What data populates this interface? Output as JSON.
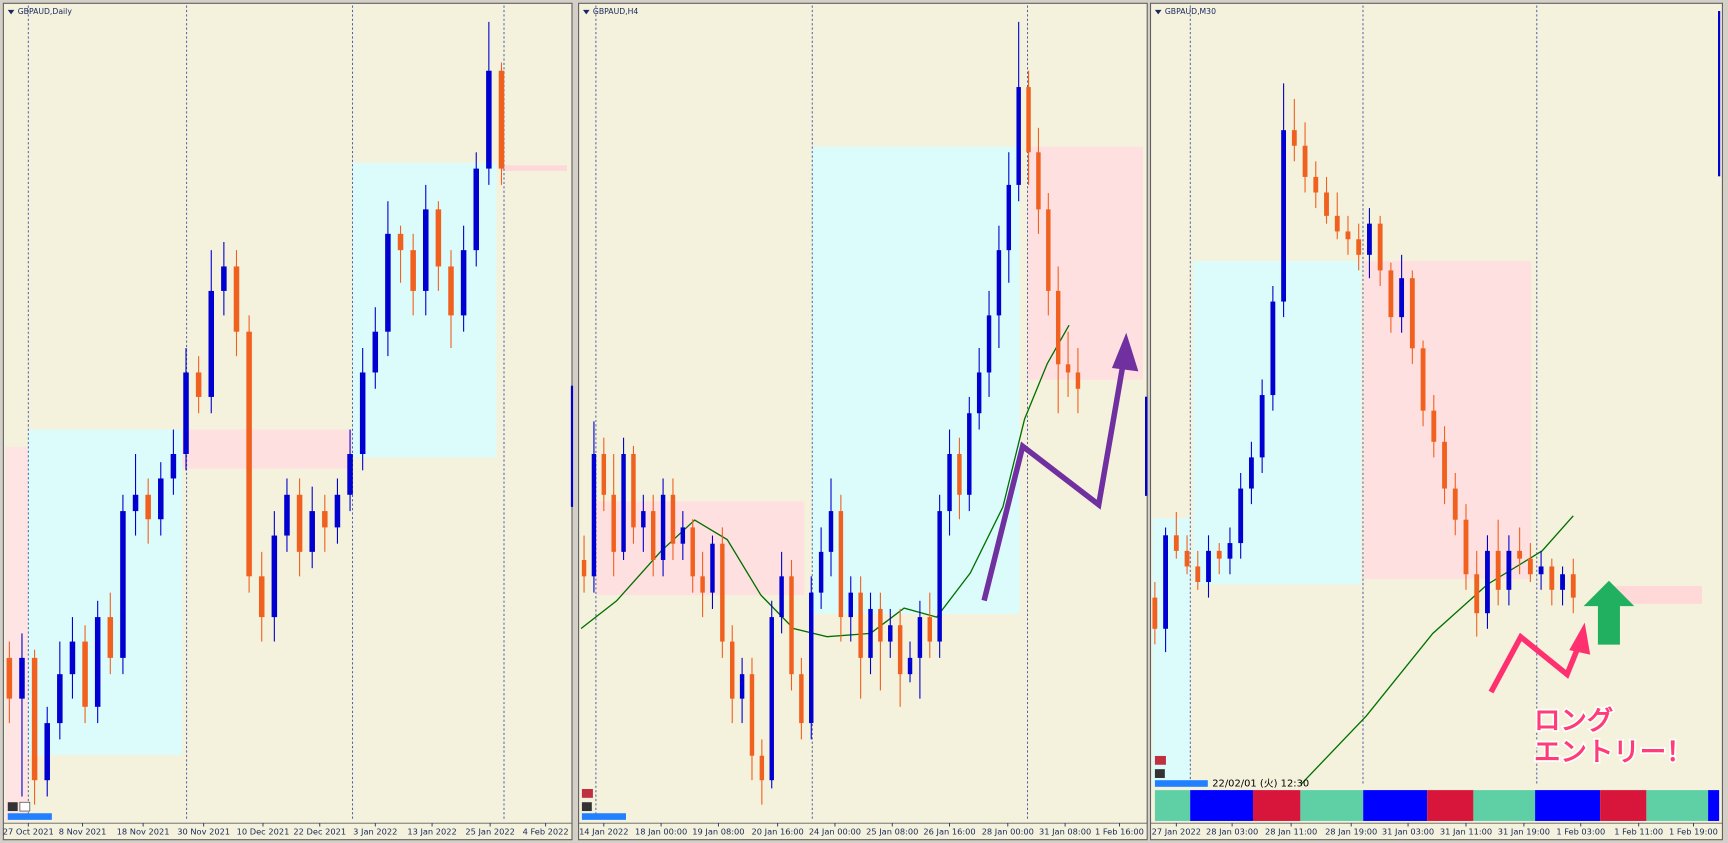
{
  "chart_data": [
    {
      "type": "candlestick",
      "title": "GBPAUD,Daily",
      "xlim": [
        -0.3,
        44.5
      ],
      "ylim": [
        0,
        100
      ],
      "xticks": [
        {
          "value": 1.5,
          "label": "27 Oct 2021"
        },
        {
          "value": 5.8,
          "label": "8 Nov 2021"
        },
        {
          "value": 10.6,
          "label": "18 Nov 2021"
        },
        {
          "value": 15.4,
          "label": "30 Nov 2021"
        },
        {
          "value": 20.1,
          "label": "10 Dec 2021"
        },
        {
          "value": 24.6,
          "label": "22 Dec 2021"
        },
        {
          "value": 29,
          "label": "3 Jan 2022"
        },
        {
          "value": 33.5,
          "label": "13 Jan 2022"
        },
        {
          "value": 38.1,
          "label": "25 Jan 2022"
        },
        {
          "value": 42.5,
          "label": "4 Feb 2022"
        }
      ],
      "separators": [
        1.5,
        14.05,
        27.2,
        39.2
      ],
      "up_color": "#0000d0",
      "down_color": "#f0601e",
      "open": [
        20,
        15,
        20,
        5,
        12,
        18,
        22,
        14,
        25,
        20,
        38,
        40,
        37,
        42,
        45,
        55,
        52,
        65,
        68,
        60,
        30,
        25,
        35,
        40,
        33,
        38,
        36,
        40,
        45,
        55,
        60,
        72,
        70,
        65,
        75,
        68,
        62,
        70,
        80,
        92
      ],
      "high": [
        22,
        23,
        21,
        14,
        22,
        25,
        24,
        27,
        28,
        40,
        45,
        42,
        44,
        48,
        58,
        57,
        70,
        71,
        70,
        62,
        33,
        38,
        42,
        42,
        41,
        40,
        42,
        48,
        58,
        63,
        76,
        73,
        72,
        78,
        76,
        70,
        73,
        82,
        98,
        93
      ],
      "low": [
        12,
        3,
        2,
        3,
        10,
        15,
        12,
        12,
        18,
        18,
        35,
        34,
        35,
        40,
        43,
        50,
        50,
        62,
        57,
        28,
        22,
        22,
        33,
        30,
        31,
        33,
        34,
        38,
        43,
        53,
        57,
        66,
        62,
        62,
        65,
        58,
        60,
        68,
        78,
        78
      ],
      "close": [
        15,
        20,
        5,
        12,
        18,
        22,
        14,
        25,
        20,
        38,
        40,
        37,
        42,
        45,
        55,
        52,
        65,
        68,
        60,
        30,
        25,
        35,
        40,
        33,
        38,
        36,
        40,
        45,
        55,
        60,
        72,
        70,
        65,
        75,
        68,
        62,
        70,
        80,
        92,
        80
      ],
      "zones": [
        {
          "from": -0.3,
          "to": 1.48,
          "low": 0,
          "high": 45.9,
          "color": "#ffe4e4"
        },
        {
          "from": 1.48,
          "to": 13.7,
          "low": 8.1,
          "high": 48,
          "color": "#dcfcfc"
        },
        {
          "from": 13.7,
          "to": 27.2,
          "low": 43.2,
          "high": 48,
          "color": "#ffe0e0"
        },
        {
          "from": 27.2,
          "to": 38.6,
          "low": 44.6,
          "high": 80.7,
          "color": "#dcfcfc"
        },
        {
          "from": 39,
          "to": 44.2,
          "low": 79.7,
          "high": 80.4,
          "color": "#ffd8d8"
        }
      ]
    },
    {
      "type": "candlestick",
      "title": "GBPAUD,H4",
      "xlim": [
        -0.33,
        56.9
      ],
      "ylim": [
        0,
        100
      ],
      "xticks": [
        {
          "value": 2,
          "label": "14 Jan 2022"
        },
        {
          "value": 7.8,
          "label": "18 Jan 00:00"
        },
        {
          "value": 13.6,
          "label": "19 Jan 08:00"
        },
        {
          "value": 19.6,
          "label": "20 Jan 16:00"
        },
        {
          "value": 25.4,
          "label": "24 Jan 00:00"
        },
        {
          "value": 31.2,
          "label": "25 Jan 08:00"
        },
        {
          "value": 37,
          "label": "26 Jan 16:00"
        },
        {
          "value": 42.9,
          "label": "28 Jan 00:00"
        },
        {
          "value": 48.7,
          "label": "31 Jan 08:00"
        },
        {
          "value": 54.2,
          "label": "1 Feb 16:00"
        }
      ],
      "separators": [
        1.2,
        23.1,
        44.9
      ],
      "up_color": "#0000d0",
      "down_color": "#f0601e",
      "open": [
        32,
        30,
        45,
        40,
        33,
        45,
        36,
        38,
        32,
        40,
        34,
        36,
        30,
        28,
        34,
        22,
        15,
        18,
        8,
        5,
        25,
        30,
        18,
        12,
        28,
        33,
        38,
        25,
        28,
        20,
        26,
        22,
        24,
        18,
        20,
        25,
        22,
        38,
        45,
        40,
        50,
        55,
        62,
        70,
        78,
        90,
        82,
        75,
        65,
        56,
        55
      ],
      "high": [
        35,
        49,
        47,
        45,
        47,
        46,
        40,
        40,
        42,
        42,
        38,
        37,
        33,
        35,
        36,
        24,
        20,
        20,
        10,
        27,
        33,
        32,
        20,
        30,
        36,
        42,
        40,
        30,
        30,
        28,
        28,
        26,
        26,
        22,
        27,
        28,
        40,
        48,
        47,
        52,
        58,
        65,
        73,
        82,
        98,
        92,
        85,
        77,
        68,
        60,
        58
      ],
      "low": [
        28,
        28,
        38,
        30,
        32,
        34,
        33,
        30,
        30,
        32,
        32,
        28,
        25,
        26,
        20,
        12,
        12,
        5,
        2,
        4,
        23,
        16,
        10,
        10,
        26,
        30,
        22,
        22,
        15,
        18,
        16,
        20,
        14,
        17,
        15,
        20,
        20,
        35,
        37,
        38,
        48,
        52,
        58,
        66,
        76,
        78,
        72,
        62,
        50,
        52,
        50
      ],
      "close": [
        30,
        45,
        40,
        33,
        45,
        36,
        38,
        32,
        40,
        34,
        36,
        30,
        28,
        34,
        22,
        15,
        18,
        8,
        5,
        25,
        30,
        18,
        12,
        28,
        33,
        38,
        25,
        28,
        20,
        26,
        22,
        24,
        18,
        20,
        25,
        22,
        38,
        45,
        40,
        50,
        55,
        62,
        70,
        78,
        90,
        82,
        75,
        65,
        56,
        55,
        53
      ],
      "zones": [
        {
          "from": 1.2,
          "to": 22.3,
          "low": 27.7,
          "high": 39.2,
          "color": "#ffe0e0"
        },
        {
          "from": 23.1,
          "to": 44.1,
          "low": 25.4,
          "high": 82.7,
          "color": "#dcfcfc"
        },
        {
          "from": 44.9,
          "to": 56.6,
          "low": 54.1,
          "high": 82.7,
          "color": "#ffe0e0"
        }
      ],
      "ma": {
        "color": "#007000",
        "x": [
          -0.3,
          3.3,
          7.8,
          11.2,
          14.5,
          17.9,
          21.2,
          24.6,
          29,
          32.4,
          35.7,
          39.1,
          42.4,
          44.6,
          46.9,
          49.1
        ],
        "values": [
          23.6,
          27,
          33.1,
          36.9,
          34.5,
          27.7,
          23.6,
          22.6,
          23,
          26.1,
          25,
          30.4,
          38.5,
          49.3,
          56.1,
          60.8
        ]
      }
    },
    {
      "type": "candlestick",
      "title": "GBPAUD,M30",
      "xlim": [
        -0.2,
        52.8
      ],
      "ylim": [
        0,
        100
      ],
      "xticks": [
        {
          "value": 2,
          "label": "27 Jan 2022"
        },
        {
          "value": 7.2,
          "label": "28 Jan 03:00"
        },
        {
          "value": 12.7,
          "label": "28 Jan 11:00"
        },
        {
          "value": 18.3,
          "label": "28 Jan 19:00"
        },
        {
          "value": 23.6,
          "label": "31 Jan 03:00"
        },
        {
          "value": 29,
          "label": "31 Jan 11:00"
        },
        {
          "value": 34.4,
          "label": "31 Jan 19:00"
        },
        {
          "value": 39.7,
          "label": "1 Feb 03:00"
        },
        {
          "value": 45.1,
          "label": "1 Feb 11:00"
        },
        {
          "value": 50.2,
          "label": "1 Feb 19:00"
        }
      ],
      "separators": [
        3.3,
        19.4,
        35.6
      ],
      "up_color": "#0000d0",
      "down_color": "#f0601e",
      "open": [
        24,
        20,
        32,
        30,
        28,
        26,
        30,
        29,
        31,
        38,
        42,
        50,
        62,
        84,
        82,
        78,
        76,
        73,
        71,
        70,
        68,
        72,
        66,
        60,
        65,
        56,
        48,
        44,
        38,
        34,
        27,
        22,
        30,
        25,
        30,
        29,
        27,
        28,
        25,
        27
      ],
      "high": [
        26,
        33,
        35,
        32,
        30,
        32,
        31,
        33,
        40,
        44,
        52,
        64,
        90,
        88,
        85,
        80,
        78,
        76,
        73,
        72,
        74,
        73,
        67,
        68,
        66,
        57,
        50,
        46,
        40,
        36,
        30,
        32,
        34,
        32,
        33,
        31,
        30,
        29,
        28,
        29
      ],
      "low": [
        18,
        17,
        29,
        27,
        25,
        24,
        27,
        27,
        29,
        36,
        40,
        48,
        60,
        80,
        76,
        74,
        72,
        70,
        68,
        66,
        65,
        64,
        58,
        58,
        54,
        46,
        42,
        36,
        32,
        25,
        19,
        20,
        23,
        23,
        27,
        26,
        25,
        23,
        23,
        22
      ],
      "close": [
        20,
        32,
        30,
        28,
        26,
        30,
        29,
        31,
        38,
        42,
        50,
        62,
        84,
        82,
        78,
        76,
        73,
        71,
        70,
        68,
        72,
        66,
        60,
        65,
        56,
        48,
        44,
        38,
        34,
        27,
        22,
        30,
        25,
        30,
        29,
        27,
        28,
        25,
        27,
        24
      ],
      "zones": [
        {
          "from": -0.2,
          "to": 3.3,
          "low": 0,
          "high": 34.2,
          "color": "#dcfcfc"
        },
        {
          "from": 3.6,
          "to": 19.2,
          "low": 25.7,
          "high": 67.2,
          "color": "#dcfcfc"
        },
        {
          "from": 19.5,
          "to": 35.1,
          "low": 26.4,
          "high": 67.2,
          "color": "#ffe0e0"
        },
        {
          "from": 42.8,
          "to": 51,
          "low": 23.2,
          "high": 25.5,
          "color": "#ffd8d8"
        }
      ],
      "ma": {
        "color": "#007000",
        "x": [
          13.6,
          19.7,
          25.9,
          31,
          36.1,
          39
        ],
        "values": [
          0,
          8.8,
          19.4,
          25.7,
          30,
          34.5
        ]
      },
      "timestamp": "22/02/01 (火) 12:30",
      "annotations": [
        "ロング",
        "エントリー！"
      ]
    }
  ]
}
